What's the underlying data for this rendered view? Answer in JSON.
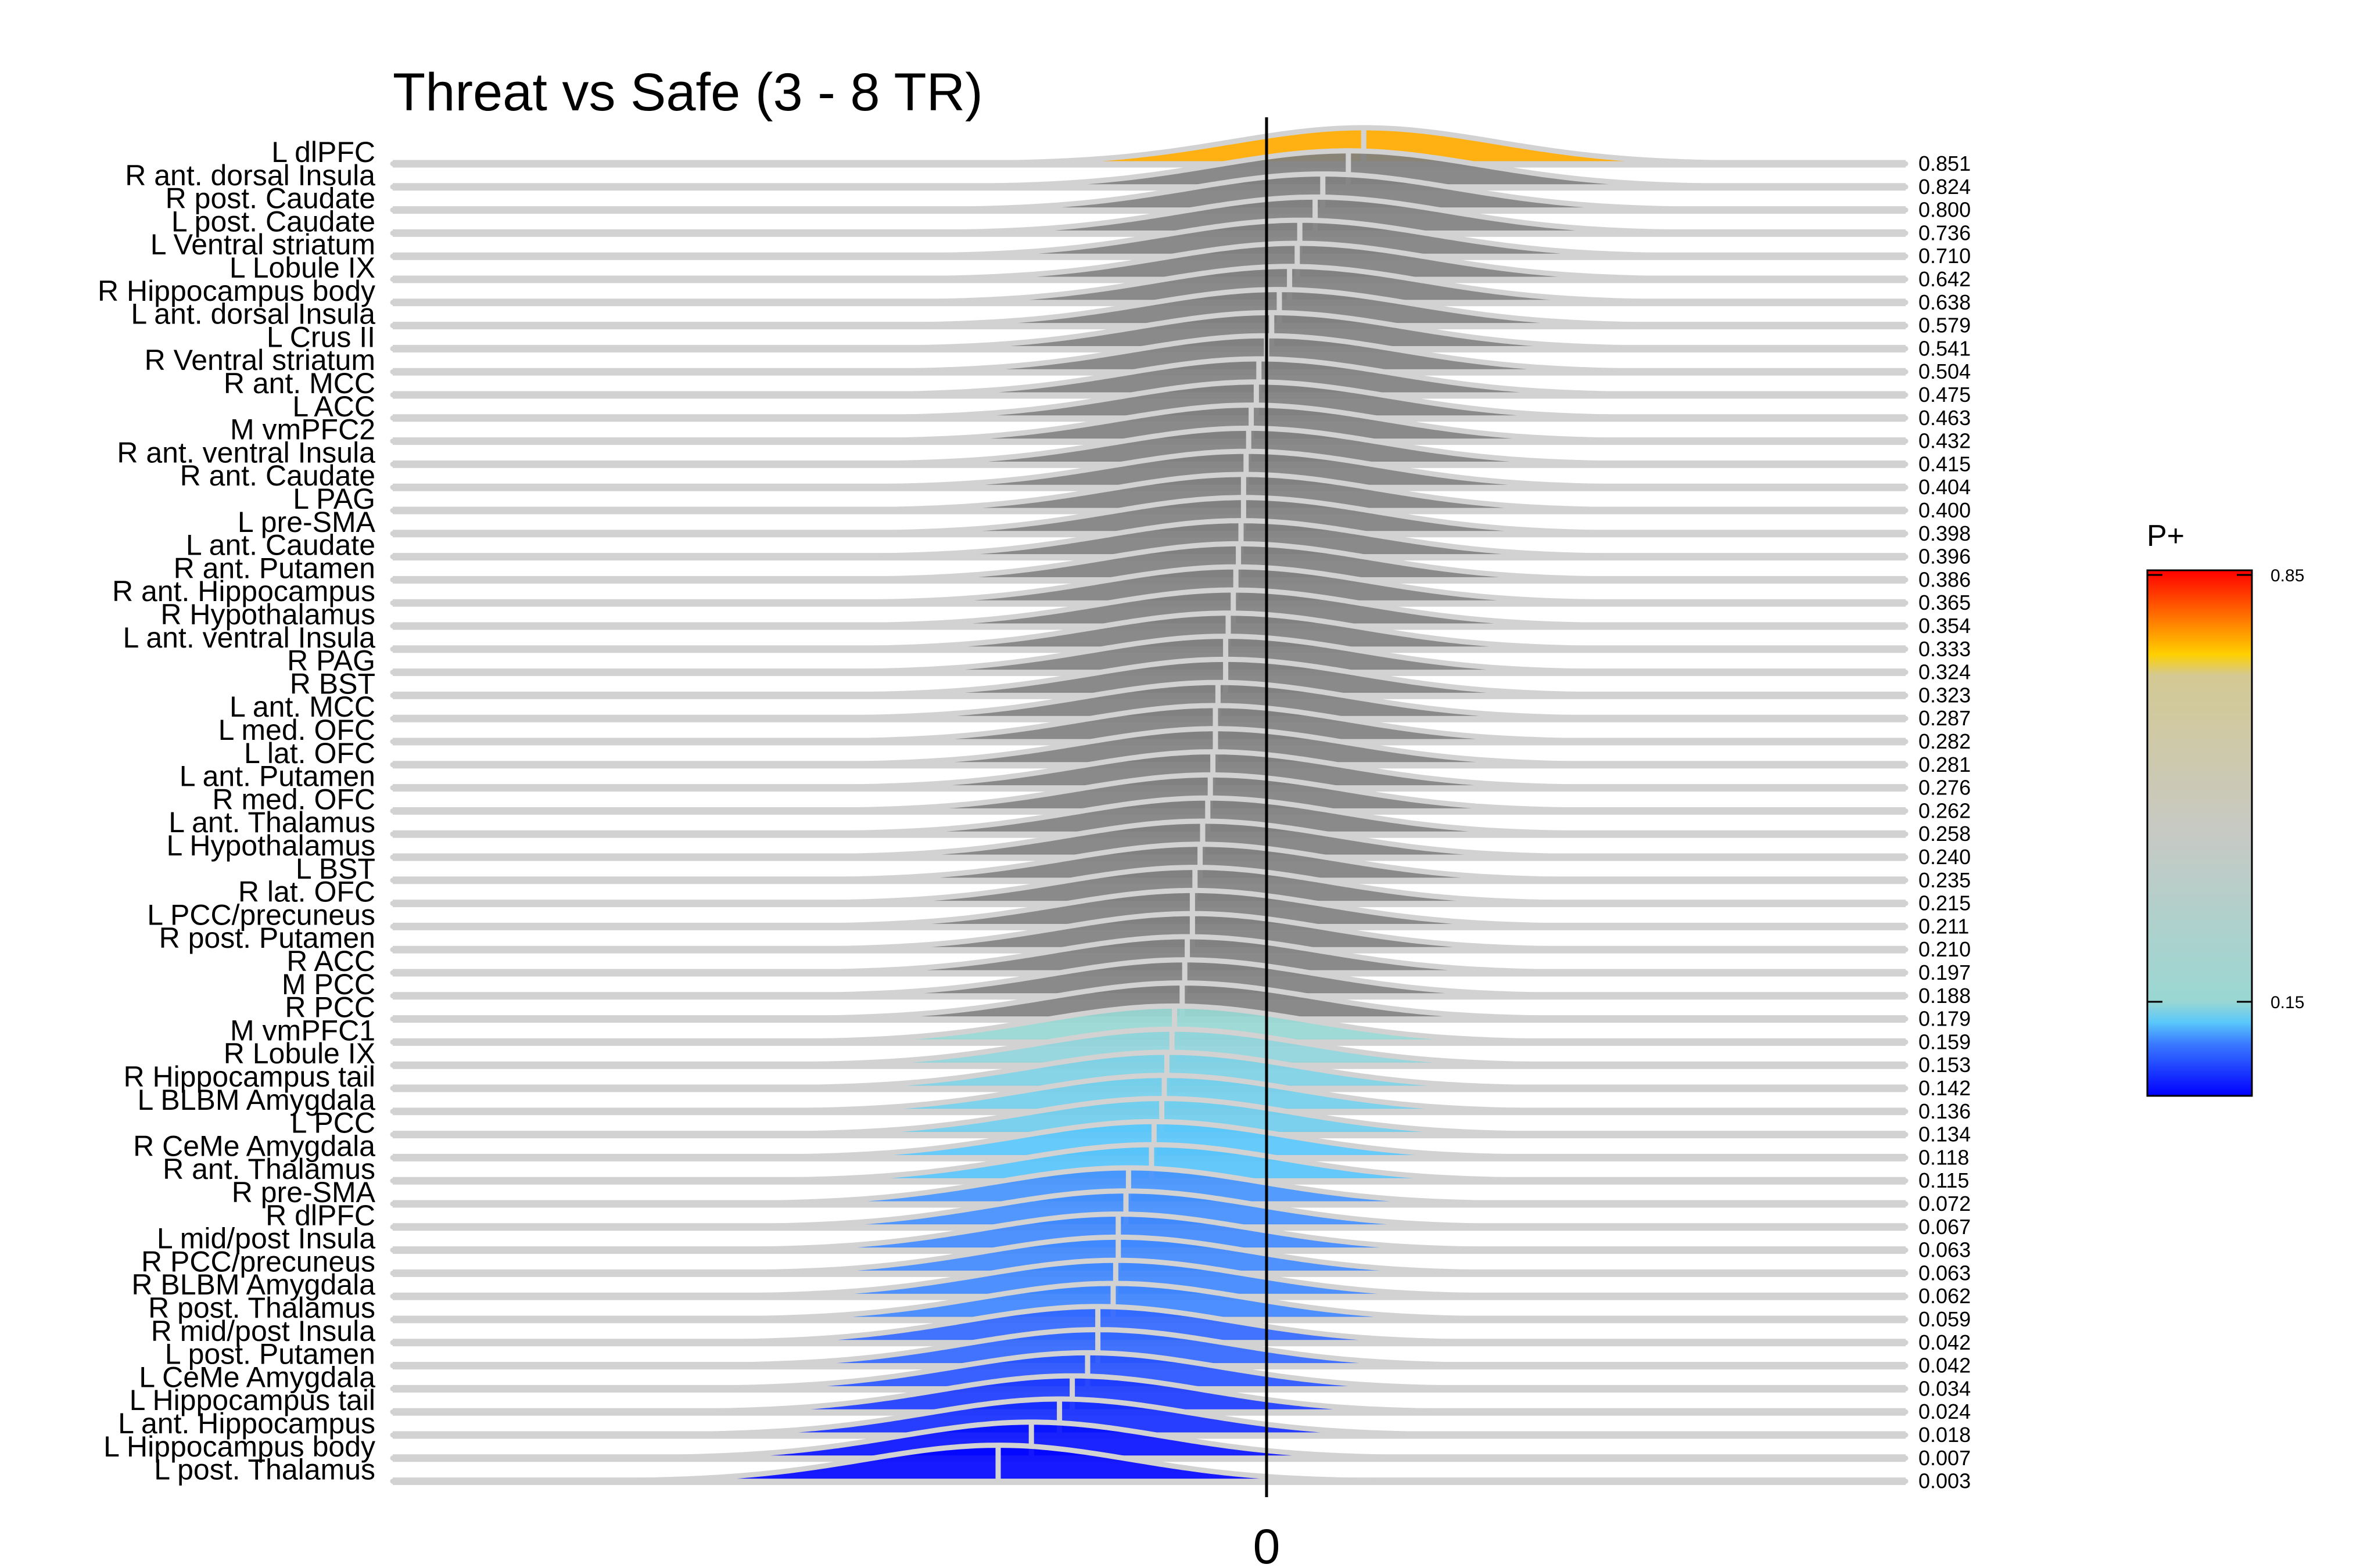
{
  "chart_data": {
    "type": "ridgeline",
    "title": "Threat vs Safe (3 - 8 TR)",
    "x_ticks": [
      "0"
    ],
    "legend": {
      "title": "P+",
      "ticks": [
        "0.85",
        "0.15"
      ],
      "colors": [
        "#0000ff",
        "#3a7bff",
        "#5ac8fa",
        "#9ad7d3",
        "#c7c9c4",
        "#d4c993",
        "#ffd000",
        "#ff5a00",
        "#ff0000"
      ]
    },
    "rows": [
      {
        "region": "L dlPFC",
        "p": "0.851",
        "m": 0.38
      },
      {
        "region": "R ant. dorsal Insula",
        "p": "0.824",
        "m": 0.32
      },
      {
        "region": "R post. Caudate",
        "p": "0.800",
        "m": 0.22
      },
      {
        "region": "L post. Caudate",
        "p": "0.736",
        "m": 0.19
      },
      {
        "region": "L Ventral striatum",
        "p": "0.710",
        "m": 0.13
      },
      {
        "region": "L Lobule IX",
        "p": "0.642",
        "m": 0.12
      },
      {
        "region": "R Hippocampus body",
        "p": "0.638",
        "m": 0.09
      },
      {
        "region": "L ant. dorsal Insula",
        "p": "0.579",
        "m": 0.05
      },
      {
        "region": "L Crus II",
        "p": "0.541",
        "m": 0.02
      },
      {
        "region": "R Ventral striatum",
        "p": "0.504",
        "m": 0.0
      },
      {
        "region": "R ant. MCC",
        "p": "0.475",
        "m": -0.03
      },
      {
        "region": "L ACC",
        "p": "0.463",
        "m": -0.04
      },
      {
        "region": "M vmPFC2",
        "p": "0.432",
        "m": -0.06
      },
      {
        "region": "R ant. ventral Insula",
        "p": "0.415",
        "m": -0.07
      },
      {
        "region": "R ant. Caudate",
        "p": "0.404",
        "m": -0.08
      },
      {
        "region": "L PAG",
        "p": "0.400",
        "m": -0.09
      },
      {
        "region": "L pre-SMA",
        "p": "0.398",
        "m": -0.09
      },
      {
        "region": "L ant. Caudate",
        "p": "0.396",
        "m": -0.1
      },
      {
        "region": "R ant. Putamen",
        "p": "0.386",
        "m": -0.11
      },
      {
        "region": "R ant. Hippocampus",
        "p": "0.365",
        "m": -0.12
      },
      {
        "region": "R Hypothalamus",
        "p": "0.354",
        "m": -0.13
      },
      {
        "region": "L ant. ventral Insula",
        "p": "0.333",
        "m": -0.15
      },
      {
        "region": "R PAG",
        "p": "0.324",
        "m": -0.16
      },
      {
        "region": "R BST",
        "p": "0.323",
        "m": -0.16
      },
      {
        "region": "L ant. MCC",
        "p": "0.287",
        "m": -0.19
      },
      {
        "region": "L med. OFC",
        "p": "0.282",
        "m": -0.2
      },
      {
        "region": "L lat. OFC",
        "p": "0.281",
        "m": -0.2
      },
      {
        "region": "L ant. Putamen",
        "p": "0.276",
        "m": -0.21
      },
      {
        "region": "R med. OFC",
        "p": "0.262",
        "m": -0.22
      },
      {
        "region": "L ant. Thalamus",
        "p": "0.258",
        "m": -0.23
      },
      {
        "region": "L Hypothalamus",
        "p": "0.240",
        "m": -0.25
      },
      {
        "region": "L BST",
        "p": "0.235",
        "m": -0.26
      },
      {
        "region": "R lat. OFC",
        "p": "0.215",
        "m": -0.28
      },
      {
        "region": "L PCC/precuneus",
        "p": "0.211",
        "m": -0.29
      },
      {
        "region": "R post. Putamen",
        "p": "0.210",
        "m": -0.29
      },
      {
        "region": "R ACC",
        "p": "0.197",
        "m": -0.31
      },
      {
        "region": "M PCC",
        "p": "0.188",
        "m": -0.32
      },
      {
        "region": "R PCC",
        "p": "0.179",
        "m": -0.33
      },
      {
        "region": "M vmPFC1",
        "p": "0.159",
        "m": -0.36
      },
      {
        "region": "R Lobule IX",
        "p": "0.153",
        "m": -0.37
      },
      {
        "region": "R Hippocampus tail",
        "p": "0.142",
        "m": -0.39
      },
      {
        "region": "L BLBM Amygdala",
        "p": "0.136",
        "m": -0.4
      },
      {
        "region": "L PCC",
        "p": "0.134",
        "m": -0.41
      },
      {
        "region": "R CeMe Amygdala",
        "p": "0.118",
        "m": -0.44
      },
      {
        "region": "R ant. Thalamus",
        "p": "0.115",
        "m": -0.45
      },
      {
        "region": "R pre-SMA",
        "p": "0.072",
        "m": -0.54
      },
      {
        "region": "R dlPFC",
        "p": "0.067",
        "m": -0.55
      },
      {
        "region": "L mid/post Insula",
        "p": "0.063",
        "m": -0.58
      },
      {
        "region": "R PCC/precuneus",
        "p": "0.063",
        "m": -0.58
      },
      {
        "region": "R BLBM Amygdala",
        "p": "0.062",
        "m": -0.59
      },
      {
        "region": "R post. Thalamus",
        "p": "0.059",
        "m": -0.6
      },
      {
        "region": "R mid/post Insula",
        "p": "0.042",
        "m": -0.66
      },
      {
        "region": "L post. Putamen",
        "p": "0.042",
        "m": -0.66
      },
      {
        "region": "L CeMe Amygdala",
        "p": "0.034",
        "m": -0.7
      },
      {
        "region": "L Hippocampus tail",
        "p": "0.024",
        "m": -0.76
      },
      {
        "region": "L ant. Hippocampus",
        "p": "0.018",
        "m": -0.81
      },
      {
        "region": "L Hippocampus body",
        "p": "0.007",
        "m": -0.92
      },
      {
        "region": "L post. Thalamus",
        "p": "0.003",
        "m": -1.05
      }
    ]
  }
}
